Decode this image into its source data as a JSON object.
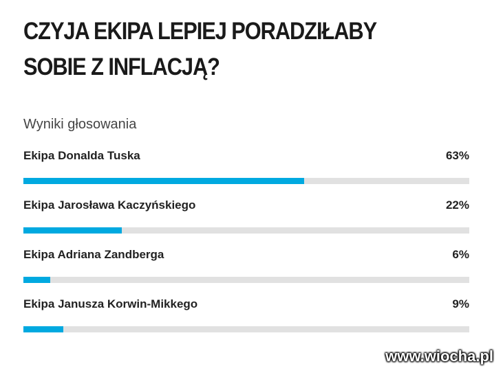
{
  "chart_data": {
    "type": "bar",
    "orientation": "horizontal",
    "title": "CZYJA EKIPA LEPIEJ PORADZIŁABY SOBIE Z INFLACJĄ?",
    "subtitle": "Wyniki głosowania",
    "categories": [
      "Ekipa Donalda Tuska",
      "Ekipa Jarosława Kaczyńskiego",
      "Ekipa Adriana Zandberga",
      "Ekipa Janusza Korwin-Mikkego"
    ],
    "values": [
      63,
      22,
      6,
      9
    ],
    "value_labels": [
      "63%",
      "22%",
      "6%",
      "9%"
    ],
    "color": "#00a9e0",
    "track_color": "#e1e1e1",
    "xlim": [
      0,
      100
    ],
    "watermark": "www.wiocha.pl"
  }
}
